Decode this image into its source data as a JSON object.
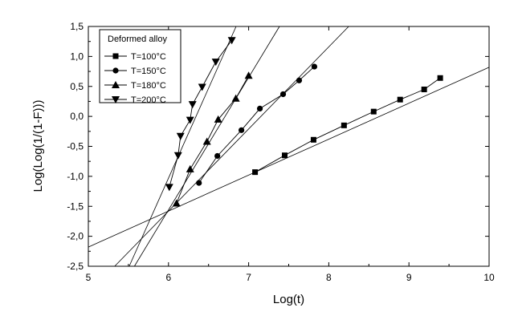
{
  "chart_data": {
    "type": "scatter",
    "title": "",
    "xlabel": "Log(t)",
    "ylabel": "Log(Log(1/(1-F)))",
    "xlim": [
      5,
      10
    ],
    "ylim": [
      -2.5,
      1.5
    ],
    "x_ticks": [
      "5",
      "6",
      "7",
      "8",
      "9",
      "10"
    ],
    "y_ticks": [
      "-2,5",
      "-2,0",
      "-1,5",
      "-1,0",
      "-0,5",
      "0,0",
      "0,5",
      "1,0",
      "1,5"
    ],
    "grid": false,
    "legend": {
      "title": "Deformed alloy",
      "placement": "top-left"
    },
    "series": [
      {
        "name": "T=100°C",
        "marker": "square",
        "x": [
          7.08,
          7.45,
          7.81,
          8.19,
          8.56,
          8.89,
          9.19,
          9.39
        ],
        "y": [
          -0.93,
          -0.65,
          -0.39,
          -0.15,
          0.08,
          0.28,
          0.45,
          0.64
        ],
        "fit": {
          "slope": 0.6,
          "intercept": -5.18
        }
      },
      {
        "name": "T=150°C",
        "marker": "circle",
        "x": [
          6.38,
          6.61,
          6.91,
          7.14,
          7.43,
          7.63,
          7.82
        ],
        "y": [
          -1.11,
          -0.66,
          -0.23,
          0.13,
          0.37,
          0.6,
          0.83
        ],
        "fit": {
          "slope": 1.37,
          "intercept": -9.8
        }
      },
      {
        "name": "T=180°C",
        "marker": "triangle-up",
        "x": [
          6.1,
          6.27,
          6.48,
          6.62,
          6.84,
          7.0
        ],
        "y": [
          -1.45,
          -0.88,
          -0.42,
          -0.05,
          0.3,
          0.68
        ],
        "fit": {
          "slope": 2.21,
          "intercept": -14.82
        }
      },
      {
        "name": "T=200°C",
        "marker": "triangle-down",
        "x": [
          6.01,
          6.12,
          6.15,
          6.27,
          6.3,
          6.42,
          6.59,
          6.79
        ],
        "y": [
          -1.18,
          -0.65,
          -0.33,
          -0.06,
          0.2,
          0.49,
          0.91,
          1.27
        ],
        "fit": {
          "slope": 3.0,
          "intercept": -19.03
        }
      }
    ]
  }
}
